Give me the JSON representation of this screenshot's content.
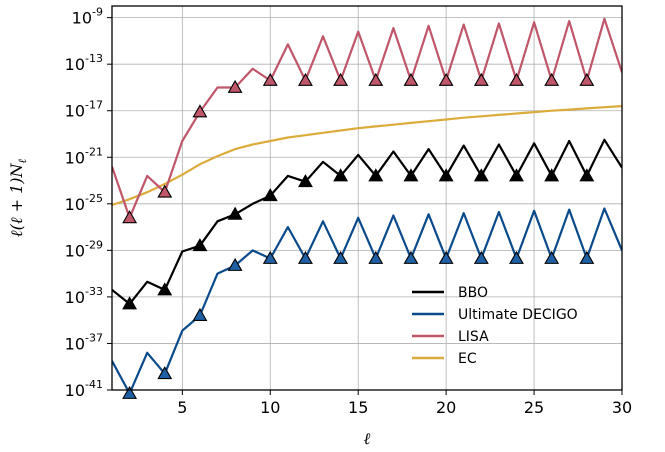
{
  "chart_data": {
    "type": "line",
    "xlabel": "ℓ",
    "ylabel": "ℓ(ℓ + 1)N",
    "ylabel_sub": "ℓ",
    "xlim": [
      1,
      30
    ],
    "ylim_log10": [
      -41,
      -8
    ],
    "y_scale": "log",
    "grid": true,
    "legend_position": "lower-right",
    "x_ticks": [
      {
        "value": 5,
        "label": "5"
      },
      {
        "value": 10,
        "label": "10"
      },
      {
        "value": 15,
        "label": "15"
      },
      {
        "value": 20,
        "label": "20"
      },
      {
        "value": 25,
        "label": "25"
      },
      {
        "value": 30,
        "label": "30"
      }
    ],
    "y_ticks": [
      {
        "exp": -9,
        "base": "10",
        "sup": "-9"
      },
      {
        "exp": -13,
        "base": "10",
        "sup": "-13"
      },
      {
        "exp": -17,
        "base": "10",
        "sup": "-17"
      },
      {
        "exp": -21,
        "base": "10",
        "sup": "-21"
      },
      {
        "exp": -25,
        "base": "10",
        "sup": "-25"
      },
      {
        "exp": -29,
        "base": "10",
        "sup": "-29"
      },
      {
        "exp": -33,
        "base": "10",
        "sup": "-33"
      },
      {
        "exp": -37,
        "base": "10",
        "sup": "-37"
      },
      {
        "exp": -41,
        "base": "10",
        "sup": "-41"
      }
    ],
    "series": [
      {
        "name": "BBO",
        "color": "#000000",
        "marker_fill": "#000000",
        "x": [
          1,
          2,
          3,
          4,
          5,
          6,
          7,
          8,
          9,
          10,
          11,
          12,
          13,
          14,
          15,
          16,
          17,
          18,
          19,
          20,
          21,
          22,
          23,
          24,
          25,
          26,
          27,
          28,
          29,
          30
        ],
        "log10_y": [
          -32.4,
          -33.6,
          -31.7,
          -32.4,
          -29.1,
          -28.6,
          -26.5,
          -25.9,
          -25.0,
          -24.3,
          -22.6,
          -23.1,
          -21.4,
          -22.6,
          -20.8,
          -22.6,
          -20.5,
          -22.6,
          -20.3,
          -22.6,
          -20.0,
          -22.6,
          -19.9,
          -22.6,
          -19.8,
          -22.6,
          -19.6,
          -22.6,
          -19.5,
          -21.9
        ],
        "markers_x": [
          2,
          4,
          6,
          8,
          10,
          12,
          14,
          16,
          18,
          20,
          22,
          24,
          26,
          28
        ]
      },
      {
        "name": "Ultimate DECIGO",
        "color": "#0b4a8a",
        "marker_fill": "#1f5fa3",
        "x": [
          1,
          2,
          3,
          4,
          5,
          6,
          7,
          8,
          9,
          10,
          11,
          12,
          13,
          14,
          15,
          16,
          17,
          18,
          19,
          20,
          21,
          22,
          23,
          24,
          25,
          26,
          27,
          28,
          29,
          30
        ],
        "log10_y": [
          -38.5,
          -41.3,
          -37.8,
          -39.6,
          -35.9,
          -34.6,
          -31.0,
          -30.3,
          -29.0,
          -29.7,
          -27.0,
          -29.7,
          -26.5,
          -29.7,
          -26.2,
          -29.7,
          -26.0,
          -29.7,
          -25.9,
          -29.7,
          -25.8,
          -29.7,
          -25.7,
          -29.7,
          -25.6,
          -29.7,
          -25.5,
          -29.7,
          -25.4,
          -29.0
        ],
        "markers_x": [
          2,
          4,
          6,
          8,
          10,
          12,
          14,
          16,
          18,
          20,
          22,
          24,
          26,
          28
        ]
      },
      {
        "name": "LISA",
        "color": "#c0566a",
        "marker_fill": "#c0566a",
        "x": [
          1,
          2,
          3,
          4,
          5,
          6,
          7,
          8,
          9,
          10,
          11,
          12,
          13,
          14,
          15,
          16,
          17,
          18,
          19,
          20,
          21,
          22,
          23,
          24,
          25,
          26,
          27,
          28,
          29,
          30
        ],
        "log10_y": [
          -21.8,
          -26.2,
          -22.6,
          -24.0,
          -19.6,
          -17.1,
          -15.0,
          -15.0,
          -13.4,
          -14.4,
          -11.3,
          -14.4,
          -10.6,
          -14.4,
          -10.2,
          -14.4,
          -9.9,
          -14.4,
          -9.7,
          -14.4,
          -9.6,
          -14.4,
          -9.5,
          -14.4,
          -9.4,
          -14.4,
          -9.3,
          -14.4,
          -9.1,
          -13.7
        ],
        "markers_x": [
          2,
          4,
          6,
          8,
          10,
          12,
          14,
          16,
          18,
          20,
          22,
          24,
          26,
          28
        ]
      },
      {
        "name": "EC",
        "color": "#dbab3c",
        "x": [
          1,
          2,
          3,
          4,
          5,
          6,
          7,
          8,
          9,
          10,
          11,
          12,
          13,
          14,
          15,
          16,
          17,
          18,
          19,
          20,
          21,
          22,
          23,
          24,
          25,
          26,
          27,
          28,
          29,
          30
        ],
        "log10_y": [
          -25.1,
          -24.6,
          -24.0,
          -23.3,
          -22.5,
          -21.6,
          -20.9,
          -20.3,
          -19.9,
          -19.6,
          -19.3,
          -19.1,
          -18.9,
          -18.7,
          -18.5,
          -18.35,
          -18.2,
          -18.05,
          -17.9,
          -17.75,
          -17.6,
          -17.48,
          -17.36,
          -17.24,
          -17.12,
          -17.0,
          -16.9,
          -16.8,
          -16.7,
          -16.6
        ],
        "markers_x": []
      }
    ]
  }
}
